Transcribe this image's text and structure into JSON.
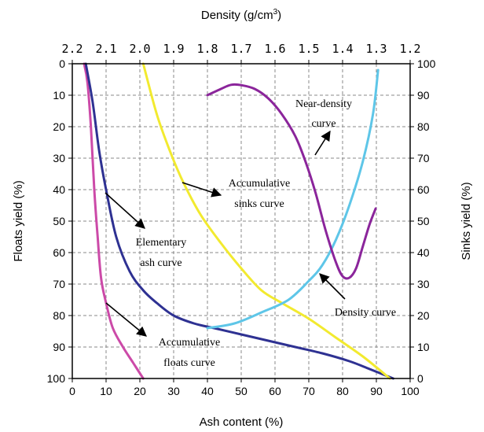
{
  "chart_data": {
    "type": "line",
    "title": "",
    "xlabel": "Ash content (%)",
    "ylabel_left": "Floats yield (%)",
    "ylabel_right": "Sinks yield (%)",
    "top_label_main": "Density (g/cm",
    "top_label_sup": "3",
    "top_label_tail": ")",
    "xlim": [
      0,
      100
    ],
    "ylim_left": [
      100,
      0
    ],
    "ylim_right": [
      0,
      100
    ],
    "x_ticks": [
      "0",
      "10",
      "20",
      "30",
      "40",
      "50",
      "60",
      "70",
      "80",
      "90",
      "100"
    ],
    "y_left_ticks": [
      "0",
      "10",
      "20",
      "30",
      "40",
      "50",
      "60",
      "70",
      "80",
      "90",
      "100"
    ],
    "y_right_ticks": [
      "100",
      "90",
      "80",
      "70",
      "60",
      "50",
      "40",
      "30",
      "20",
      "10",
      "0"
    ],
    "density_ticks": [
      "2.2",
      "2.1",
      "2.0",
      "1.9",
      "1.8",
      "1.7",
      "1.6",
      "1.5",
      "1.4",
      "1.3",
      "1.2"
    ],
    "grid": true,
    "series": [
      {
        "id": "accumulative_floats",
        "color": "#cc4aa8",
        "axis": "left",
        "points": [
          [
            3.5,
            0
          ],
          [
            4.5,
            6
          ],
          [
            5.5,
            20
          ],
          [
            6.5,
            40
          ],
          [
            7.5,
            55
          ],
          [
            8.5,
            68
          ],
          [
            10,
            76
          ],
          [
            12,
            84
          ],
          [
            15,
            90
          ],
          [
            18,
            95
          ],
          [
            21,
            100
          ]
        ]
      },
      {
        "id": "elementary_ash",
        "color": "#2e3192",
        "axis": "left",
        "points": [
          [
            4,
            0
          ],
          [
            6,
            12
          ],
          [
            8,
            28
          ],
          [
            10,
            40
          ],
          [
            13,
            55
          ],
          [
            17,
            66
          ],
          [
            21,
            72
          ],
          [
            25,
            76
          ],
          [
            30,
            80
          ],
          [
            36,
            82.5
          ],
          [
            42,
            84
          ],
          [
            50,
            86
          ],
          [
            58,
            88
          ],
          [
            66,
            90
          ],
          [
            74,
            92
          ],
          [
            82,
            94.5
          ],
          [
            88,
            97
          ],
          [
            95,
            100
          ]
        ]
      },
      {
        "id": "accumulative_sinks",
        "color": "#f2ea2f",
        "axis": "left",
        "points": [
          [
            21,
            0
          ],
          [
            25,
            16
          ],
          [
            29,
            28
          ],
          [
            33,
            38
          ],
          [
            38,
            48
          ],
          [
            44,
            57
          ],
          [
            50,
            65
          ],
          [
            56,
            72
          ],
          [
            62,
            76
          ],
          [
            70,
            81
          ],
          [
            78,
            87
          ],
          [
            86,
            93
          ],
          [
            94,
            100
          ]
        ]
      },
      {
        "id": "density",
        "color": "#5ec6e8",
        "axis": "left",
        "points": [
          [
            40,
            84
          ],
          [
            48,
            82.5
          ],
          [
            56,
            79
          ],
          [
            64,
            75
          ],
          [
            70,
            69
          ],
          [
            74,
            64
          ],
          [
            78,
            56
          ],
          [
            82,
            45
          ],
          [
            86,
            31
          ],
          [
            89,
            16
          ],
          [
            90.5,
            2
          ]
        ]
      },
      {
        "id": "near_density",
        "color": "#8b259b",
        "axis": "right",
        "points": [
          [
            40,
            90
          ],
          [
            44,
            92
          ],
          [
            47,
            93.3
          ],
          [
            50,
            93.2
          ],
          [
            54,
            92
          ],
          [
            58,
            89
          ],
          [
            62,
            84
          ],
          [
            66,
            77
          ],
          [
            69,
            69
          ],
          [
            72,
            59
          ],
          [
            75,
            47
          ],
          [
            78,
            37
          ],
          [
            80,
            32.5
          ],
          [
            82,
            32
          ],
          [
            84,
            35
          ],
          [
            86,
            42
          ],
          [
            88,
            49
          ],
          [
            89.8,
            54
          ]
        ]
      }
    ],
    "annotations": [
      {
        "id": "near_density",
        "lines": [
          "Near-density",
          "curve"
        ]
      },
      {
        "id": "accumulative_sinks",
        "lines": [
          "Accumulative",
          "sinks curve"
        ]
      },
      {
        "id": "elementary_ash",
        "lines": [
          "Elementary",
          "ash curve"
        ]
      },
      {
        "id": "density",
        "lines": [
          "Density curve"
        ]
      },
      {
        "id": "accumulative_floats",
        "lines": [
          "Accumulative",
          "floats curve"
        ]
      }
    ]
  }
}
